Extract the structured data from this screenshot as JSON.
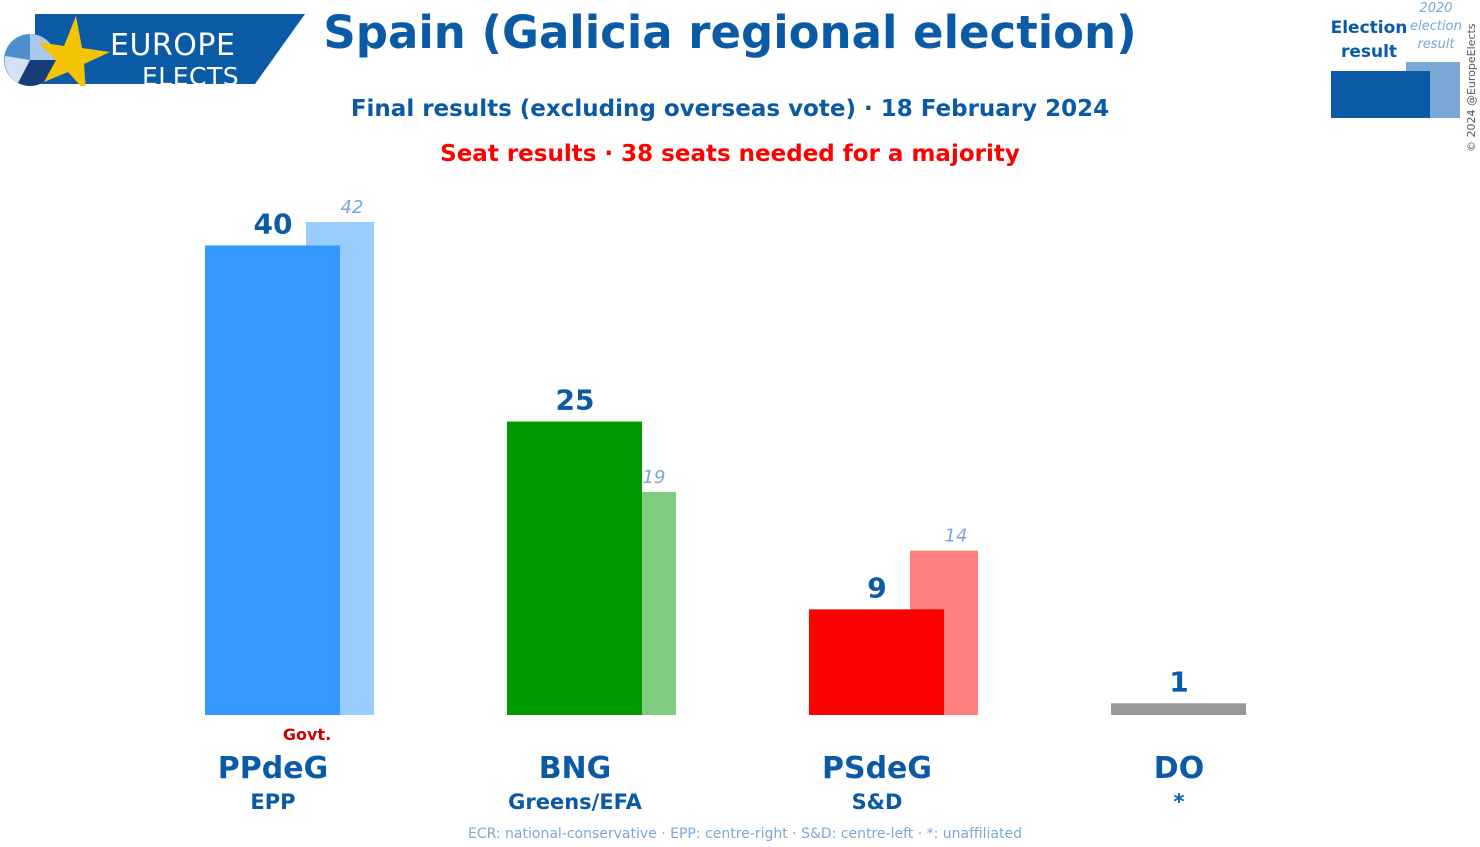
{
  "logo": {
    "line1": "EUROPE",
    "line2": "ELECTS"
  },
  "title": "Spain (Galicia regional election)",
  "subtitle": "Final results (excluding overseas vote) · 18 February 2024",
  "subtitle2": "Seat results · 38 seats needed for a majority",
  "legend": {
    "current_label": "Election result",
    "previous_label": "2020 election result"
  },
  "credit": "© 2024 @EuropeElects",
  "footer": "ECR: national-conservative · EPP: centre-right · S&D: centre-left · *: unaffiliated",
  "chart_data": {
    "type": "bar",
    "title": "Spain (Galicia regional election)",
    "categories": [
      "PPdeG",
      "BNG",
      "PSdeG",
      "DO"
    ],
    "groups": [
      "EPP",
      "Greens/EFA",
      "S&D",
      "*"
    ],
    "series": [
      {
        "name": "Election result",
        "values": [
          40,
          25,
          9,
          1
        ]
      },
      {
        "name": "2020 election result",
        "values": [
          42,
          19,
          14,
          null
        ]
      }
    ],
    "colors": [
      "#3399ff",
      "#009900",
      "#ff0000",
      "#999999"
    ],
    "prev_colors": [
      "#99ccff",
      "#80cc80",
      "#ff8080",
      "#cccccc"
    ],
    "annotations": [
      {
        "category": "PPdeG",
        "text": "Govt."
      }
    ],
    "ylim": [
      0,
      42
    ],
    "xlabel": "",
    "ylabel": ""
  }
}
